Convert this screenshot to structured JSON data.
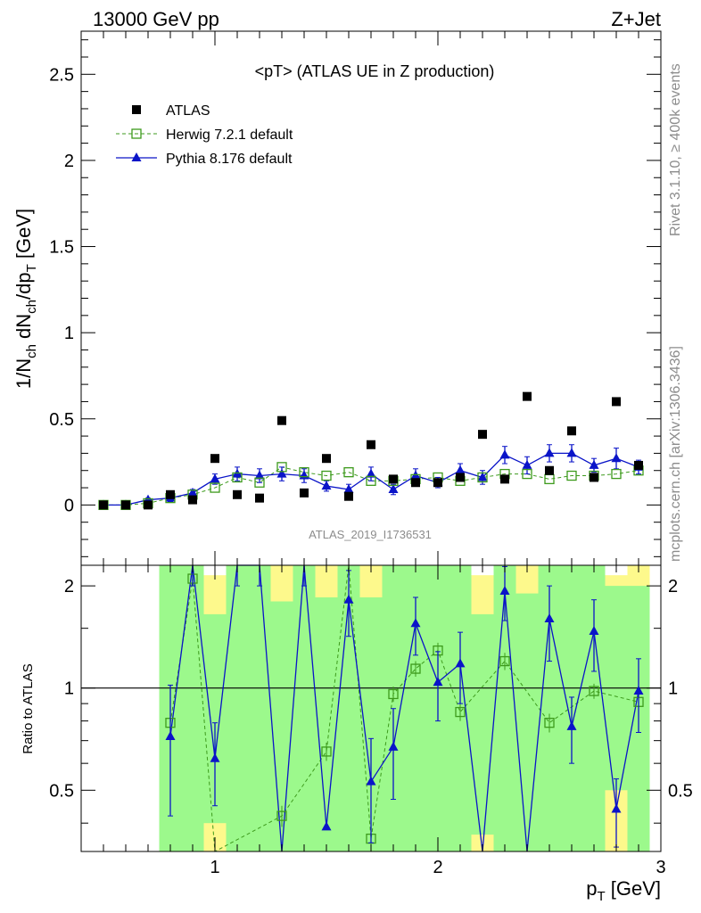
{
  "header": {
    "left": "13000 GeV pp",
    "right": "Z+Jet"
  },
  "colors": {
    "atlas": "#000000",
    "herwig": "#3d9a1c",
    "pythia": "#0a14c8",
    "band_inner": "#9cf98c",
    "band_outer": "#fdf98c"
  },
  "side_labels": {
    "rivet": "Rivet 3.1.10, ≥ 400k events",
    "mcplots": "mcplots.cern.ch [arXiv:1306.3436]"
  },
  "chart_data": [
    {
      "type": "scatter",
      "title": "<pT> (ATLAS UE in Z production)",
      "ylabel_parts": {
        "a": "1/N",
        "a_sub": "ch",
        "b": " dN",
        "b_sub": "ch",
        "c": "/dp",
        "c_sub": "T",
        "d": " [GeV]"
      },
      "xlim": [
        0.4,
        3.0
      ],
      "ylim": [
        -0.35,
        2.75
      ],
      "y_ticks": [
        0,
        0.5,
        1,
        1.5,
        2,
        2.5
      ],
      "y_tick_labels": [
        "0",
        "0.5",
        "1",
        "1.5",
        "2",
        "2.5"
      ],
      "watermark": "ATLAS_2019_I1736531",
      "legend": [
        {
          "label": "ATLAS",
          "marker": "square-filled"
        },
        {
          "label": "Herwig 7.2.1 default",
          "marker": "square-open",
          "line": "dashed"
        },
        {
          "label": "Pythia 8.176 default",
          "marker": "triangle",
          "line": "solid"
        }
      ],
      "series": [
        {
          "name": "ATLAS",
          "x": [
            0.5,
            0.6,
            0.7,
            0.8,
            0.9,
            1.0,
            1.1,
            1.2,
            1.3,
            1.4,
            1.5,
            1.6,
            1.7,
            1.8,
            1.9,
            2.0,
            2.1,
            2.2,
            2.3,
            2.4,
            2.5,
            2.6,
            2.7,
            2.8,
            2.9
          ],
          "y": [
            0.0,
            0.0,
            0.0,
            0.06,
            0.03,
            0.27,
            0.06,
            0.04,
            0.49,
            0.07,
            0.27,
            0.05,
            0.35,
            0.15,
            0.13,
            0.13,
            0.16,
            0.41,
            0.15,
            0.63,
            0.2,
            0.43,
            0.16,
            0.6,
            0.23
          ]
        },
        {
          "name": "Herwig 7.2.1 default",
          "x": [
            0.5,
            0.6,
            0.7,
            0.8,
            0.9,
            1.0,
            1.1,
            1.2,
            1.3,
            1.4,
            1.5,
            1.6,
            1.7,
            1.8,
            1.9,
            2.0,
            2.1,
            2.2,
            2.3,
            2.4,
            2.5,
            2.6,
            2.7,
            2.8,
            2.9
          ],
          "y": [
            0.0,
            0.0,
            0.01,
            0.04,
            0.06,
            0.1,
            0.16,
            0.13,
            0.22,
            0.19,
            0.17,
            0.19,
            0.14,
            0.14,
            0.15,
            0.16,
            0.14,
            0.16,
            0.18,
            0.18,
            0.15,
            0.17,
            0.17,
            0.18,
            0.2
          ]
        },
        {
          "name": "Pythia 8.176 default",
          "x": [
            0.5,
            0.6,
            0.7,
            0.8,
            0.9,
            1.0,
            1.1,
            1.2,
            1.3,
            1.4,
            1.5,
            1.6,
            1.7,
            1.8,
            1.9,
            2.0,
            2.1,
            2.2,
            2.3,
            2.4,
            2.5,
            2.6,
            2.7,
            2.8,
            2.9
          ],
          "y": [
            0.0,
            0.0,
            0.03,
            0.04,
            0.07,
            0.15,
            0.18,
            0.17,
            0.18,
            0.17,
            0.11,
            0.09,
            0.18,
            0.09,
            0.17,
            0.13,
            0.2,
            0.16,
            0.29,
            0.23,
            0.3,
            0.3,
            0.23,
            0.27,
            0.22
          ],
          "yerr": [
            0.0,
            0.0,
            0.01,
            0.02,
            0.02,
            0.03,
            0.04,
            0.04,
            0.04,
            0.04,
            0.03,
            0.03,
            0.04,
            0.03,
            0.04,
            0.03,
            0.04,
            0.04,
            0.05,
            0.05,
            0.05,
            0.05,
            0.04,
            0.06,
            0.04
          ]
        }
      ]
    },
    {
      "type": "line",
      "ylabel": "Ratio to ATLAS",
      "xlabel": "p_T [GeV]",
      "xlabel_parts": {
        "main": "p",
        "sub": "T",
        "unit": " [GeV]"
      },
      "xlim": [
        0.4,
        3.0
      ],
      "ylim": [
        0.33,
        2.3
      ],
      "x_ticks": [
        1,
        2,
        3
      ],
      "x_tick_labels": [
        "1",
        "2",
        "3"
      ],
      "y_ticks": [
        0.5,
        1,
        2
      ],
      "y_tick_labels": [
        "0.5",
        "1",
        "2"
      ],
      "reference_line": 1,
      "bands": {
        "x": [
          0.8,
          0.9,
          1.0,
          1.1,
          1.2,
          1.3,
          1.4,
          1.5,
          1.6,
          1.7,
          1.8,
          1.9,
          2.0,
          2.1,
          2.2,
          2.3,
          2.4,
          2.5,
          2.6,
          2.7,
          2.8,
          2.9
        ],
        "inner_lo": [
          0.33,
          0.33,
          0.4,
          0.33,
          0.33,
          0.33,
          0.33,
          0.33,
          0.33,
          0.33,
          0.33,
          0.33,
          0.33,
          0.33,
          0.37,
          0.33,
          0.33,
          0.33,
          0.33,
          0.33,
          0.5,
          0.33
        ],
        "inner_hi": [
          2.3,
          2.3,
          1.65,
          2.3,
          2.3,
          1.8,
          2.3,
          1.85,
          2.3,
          1.85,
          2.3,
          2.3,
          2.3,
          2.3,
          1.65,
          2.3,
          1.9,
          2.3,
          2.3,
          2.3,
          2.0,
          2.0
        ],
        "outer_lo": [
          0.33,
          0.33,
          0.33,
          0.33,
          0.33,
          0.33,
          0.33,
          0.33,
          0.33,
          0.33,
          0.33,
          0.33,
          0.33,
          0.33,
          0.33,
          0.33,
          0.33,
          0.33,
          0.33,
          0.33,
          0.33,
          0.33
        ],
        "outer_hi": [
          2.3,
          2.3,
          2.15,
          2.3,
          2.3,
          2.3,
          2.3,
          2.3,
          2.3,
          2.3,
          2.3,
          2.3,
          2.3,
          2.3,
          2.15,
          2.3,
          2.3,
          2.3,
          2.3,
          2.3,
          2.15,
          2.3
        ]
      },
      "series": [
        {
          "name": "Herwig 7.2.1 default",
          "x": [
            0.8,
            0.9,
            1.0,
            1.3,
            1.5,
            1.6,
            1.7,
            1.8,
            1.9,
            2.0,
            2.1,
            2.3,
            2.5,
            2.7,
            2.9
          ],
          "y": [
            0.79,
            2.1,
            0.33,
            0.42,
            0.65,
            2.3,
            0.36,
            0.96,
            1.14,
            1.29,
            0.85,
            1.2,
            0.79,
            0.98,
            0.91
          ],
          "yerr": [
            0.05,
            0.08,
            0.0,
            0.03,
            0.04,
            0.1,
            0.02,
            0.05,
            0.06,
            0.07,
            0.05,
            0.07,
            0.05,
            0.05,
            0.05
          ]
        },
        {
          "name": "Pythia 8.176 default",
          "x": [
            0.8,
            0.9,
            1.0,
            1.1,
            1.2,
            1.3,
            1.4,
            1.5,
            1.6,
            1.7,
            1.8,
            1.9,
            2.0,
            2.1,
            2.2,
            2.3,
            2.4,
            2.5,
            2.6,
            2.7,
            2.8,
            2.9
          ],
          "y": [
            0.72,
            2.3,
            0.62,
            2.3,
            2.3,
            0.33,
            2.3,
            0.39,
            1.82,
            0.53,
            0.67,
            1.55,
            1.04,
            1.18,
            0.33,
            1.93,
            0.33,
            1.6,
            0.77,
            1.47,
            0.44,
            0.98
          ],
          "yerr": [
            0.3,
            0.3,
            0.17,
            0.3,
            0.3,
            0.0,
            0.3,
            0.0,
            0.4,
            0.18,
            0.2,
            0.3,
            0.24,
            0.28,
            0.0,
            0.35,
            0.0,
            0.4,
            0.17,
            0.35,
            0.1,
            0.24
          ]
        }
      ]
    }
  ]
}
